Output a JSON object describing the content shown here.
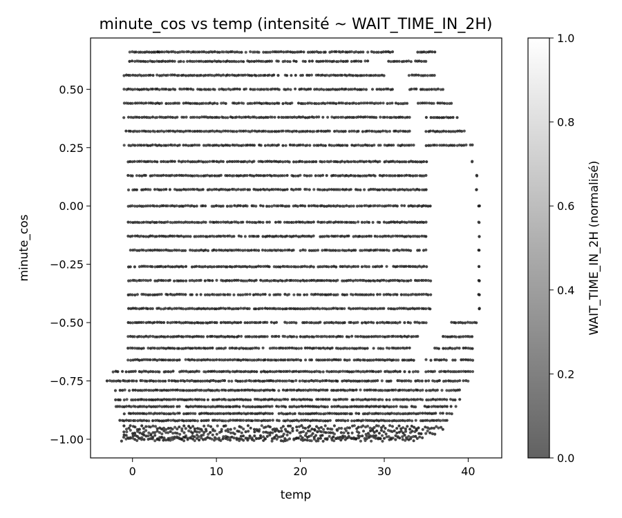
{
  "chart_data": {
    "type": "scatter",
    "title": "minute_cos vs temp (intensité ~ WAIT_TIME_IN_2H)",
    "xlabel": "temp",
    "ylabel": "minute_cos",
    "xlim": [
      -5,
      44
    ],
    "ylim": [
      -1.08,
      0.72
    ],
    "xticks": [
      0,
      10,
      20,
      30,
      40
    ],
    "xtick_labels": [
      "0",
      "10",
      "20",
      "30",
      "40"
    ],
    "yticks": [
      -1.0,
      -0.75,
      -0.5,
      -0.25,
      0.0,
      0.25,
      0.5
    ],
    "ytick_labels": [
      "−1.00",
      "−0.75",
      "−0.50",
      "−0.25",
      "0.00",
      "0.25",
      "0.50"
    ],
    "grid": false,
    "colormap": "gray",
    "point_alpha": 0.6,
    "colorbar": {
      "label": "WAIT_TIME_IN_2H (normalisé)",
      "range": [
        0,
        1
      ],
      "ticks": [
        0.0,
        0.2,
        0.4,
        0.6,
        0.8,
        1.0
      ],
      "tick_labels": [
        "0.0",
        "0.2",
        "0.4",
        "0.6",
        "0.8",
        "1.0"
      ]
    },
    "bands": [
      {
        "y": 0.66,
        "segments": [
          [
            -0.3,
            3.0
          ],
          [
            3.0,
            28.0
          ],
          [
            28.5,
            31.0
          ],
          [
            34.0,
            36.0
          ]
        ]
      },
      {
        "y": 0.62,
        "segments": [
          [
            -0.3,
            28.0
          ],
          [
            30.5,
            35.0
          ]
        ]
      },
      {
        "y": 0.56,
        "segments": [
          [
            -1.0,
            30.0
          ],
          [
            33.0,
            36.0
          ]
        ]
      },
      {
        "y": 0.5,
        "segments": [
          [
            -1.0,
            31.0
          ],
          [
            33.0,
            37.0
          ]
        ]
      },
      {
        "y": 0.44,
        "segments": [
          [
            -1.0,
            33.0
          ],
          [
            34.0,
            38.0
          ]
        ]
      },
      {
        "y": 0.38,
        "segments": [
          [
            -1.0,
            33.0
          ],
          [
            35.0,
            39.0
          ]
        ]
      },
      {
        "y": 0.32,
        "segments": [
          [
            -1.0,
            33.0
          ],
          [
            35.0,
            39.5
          ]
        ]
      },
      {
        "y": 0.26,
        "segments": [
          [
            -1.0,
            33.5
          ],
          [
            35.0,
            40.5
          ]
        ]
      },
      {
        "y": 0.19,
        "segments": [
          [
            -0.5,
            35.0
          ],
          [
            40.5,
            40.5
          ]
        ]
      },
      {
        "y": 0.13,
        "segments": [
          [
            -0.5,
            35.0
          ],
          [
            41.0,
            41.0
          ]
        ]
      },
      {
        "y": 0.07,
        "segments": [
          [
            -0.5,
            35.0
          ],
          [
            41.0,
            41.0
          ]
        ]
      },
      {
        "y": 0.0,
        "segments": [
          [
            -0.5,
            35.5
          ],
          [
            41.3,
            41.3
          ]
        ]
      },
      {
        "y": -0.07,
        "segments": [
          [
            -0.5,
            35.0
          ],
          [
            41.3,
            41.3
          ]
        ]
      },
      {
        "y": -0.13,
        "segments": [
          [
            -0.5,
            35.0
          ],
          [
            41.3,
            41.3
          ]
        ]
      },
      {
        "y": -0.19,
        "segments": [
          [
            -0.5,
            35.0
          ],
          [
            41.3,
            41.3
          ]
        ]
      },
      {
        "y": -0.26,
        "segments": [
          [
            -0.5,
            35.0
          ],
          [
            41.3,
            41.3
          ]
        ]
      },
      {
        "y": -0.32,
        "segments": [
          [
            -0.5,
            35.5
          ],
          [
            41.3,
            41.3
          ]
        ]
      },
      {
        "y": -0.38,
        "segments": [
          [
            -0.5,
            35.5
          ],
          [
            41.3,
            41.3
          ]
        ]
      },
      {
        "y": -0.44,
        "segments": [
          [
            -0.5,
            35.5
          ],
          [
            41.3,
            41.3
          ]
        ]
      },
      {
        "y": -0.5,
        "segments": [
          [
            -0.5,
            35.0
          ],
          [
            38.0,
            41.0
          ]
        ]
      },
      {
        "y": -0.56,
        "segments": [
          [
            -0.5,
            34.0
          ],
          [
            37.0,
            40.5
          ]
        ]
      },
      {
        "y": -0.61,
        "segments": [
          [
            -0.5,
            33.0
          ],
          [
            36.0,
            40.5
          ]
        ]
      },
      {
        "y": -0.66,
        "segments": [
          [
            -0.5,
            33.5
          ],
          [
            35.0,
            40.5
          ]
        ]
      },
      {
        "y": -0.71,
        "segments": [
          [
            -2.3,
            34.0
          ],
          [
            35.0,
            40.5
          ]
        ]
      },
      {
        "y": -0.75,
        "segments": [
          [
            -3.0,
            34.5
          ],
          [
            35.0,
            40.0
          ]
        ]
      },
      {
        "y": -0.79,
        "segments": [
          [
            -2.0,
            39.0
          ]
        ]
      },
      {
        "y": -0.83,
        "segments": [
          [
            -2.0,
            39.0
          ]
        ]
      },
      {
        "y": -0.86,
        "segments": [
          [
            -2.0,
            38.5
          ]
        ]
      },
      {
        "y": -0.89,
        "segments": [
          [
            -1.5,
            38.0
          ]
        ]
      },
      {
        "y": -0.92,
        "segments": [
          [
            -1.5,
            37.5
          ]
        ]
      },
      {
        "y": -0.95,
        "segments": [
          [
            -1.0,
            37.0
          ]
        ]
      },
      {
        "y": -0.97,
        "segments": [
          [
            -1.0,
            36.0
          ]
        ]
      },
      {
        "y": -0.99,
        "segments": [
          [
            -1.0,
            34.5
          ]
        ]
      },
      {
        "y": -1.0,
        "segments": [
          [
            -1.3,
            33.5
          ]
        ]
      }
    ]
  }
}
